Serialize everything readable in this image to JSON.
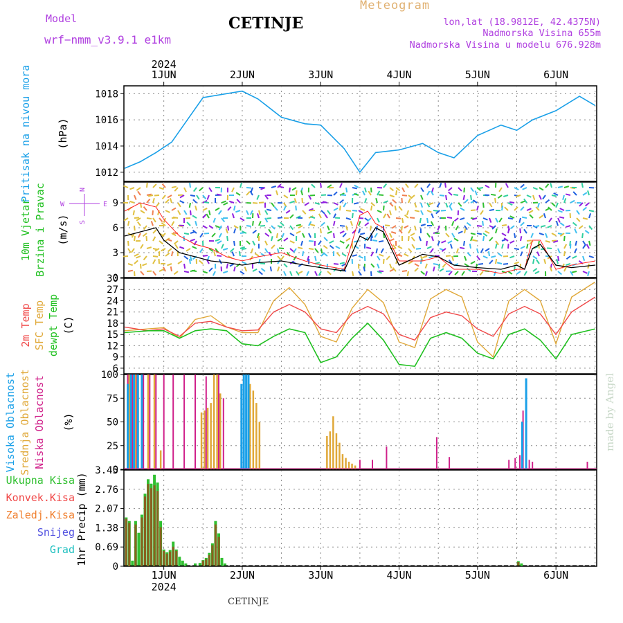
{
  "header": {
    "model_label": "Model",
    "model_name": "wrf−nmm_v3.9.1 e1km",
    "station": "CETINJE",
    "meteogram": "Meteogram",
    "lonlat": "lon,lat (18.9812E, 42.4375N)",
    "elevation": "Nadmorska Visina 655m",
    "model_elevation": "Nadmorska Visina u modelu 676.928m"
  },
  "time_axis": {
    "year": "2024",
    "days": [
      "1JUN",
      "2JUN",
      "3JUN",
      "4JUN",
      "5JUN",
      "6JUN"
    ]
  },
  "footer": {
    "station": "CETINJE",
    "made_by": "made by Angel"
  },
  "colors": {
    "pressure": "#1aa0e8",
    "wind_speed": "#000000",
    "gust": "#ff2020",
    "t2m": "#f04848",
    "sfc": "#e0a838",
    "dewpt": "#20c020",
    "high_cloud": "#1aa0e8",
    "mid_cloud": "#e0a838",
    "low_cloud": "#d0208a",
    "total_precip": "#30c030",
    "conv_precip": "#f04848"
  },
  "chart_data": [
    {
      "type": "line",
      "panel": "pressure",
      "ylabel": [
        "Pritisak na nivou mora",
        "(hPa)"
      ],
      "yticks": [
        "1012",
        "1014",
        "1016",
        "1018"
      ],
      "ylim": [
        1011.3,
        1018.6
      ],
      "x": [
        0.5,
        0.7,
        0.9,
        1.1,
        1.3,
        1.5,
        1.8,
        2.0,
        2.2,
        2.5,
        2.8,
        3.0,
        3.3,
        3.5,
        3.7,
        4.0,
        4.3,
        4.5,
        4.7,
        5.0,
        5.3,
        5.5,
        5.7,
        6.0,
        6.3,
        6.5
      ],
      "series": [
        {
          "values": [
            1012.3,
            1012.8,
            1013.5,
            1014.3,
            1016.0,
            1017.7,
            1018.0,
            1018.2,
            1017.6,
            1016.2,
            1015.7,
            1015.6,
            1013.8,
            1012.0,
            1013.5,
            1013.7,
            1014.2,
            1013.5,
            1013.1,
            1014.8,
            1015.6,
            1015.2,
            1016.0,
            1016.7,
            1017.8,
            1017.1
          ]
        }
      ],
      "grid": true
    },
    {
      "type": "line",
      "panel": "wind",
      "ylabel": [
        "10m Vjetar",
        "Brzina i Pravac",
        "(m/s)"
      ],
      "compass": {
        "n": "N",
        "s": "S",
        "e": "E",
        "w": "W"
      },
      "yticks": [
        "0",
        "3",
        "6",
        "9"
      ],
      "ylim": [
        0,
        11.5
      ],
      "x": [
        0.5,
        0.7,
        0.9,
        1.0,
        1.2,
        1.4,
        1.6,
        1.8,
        2.0,
        2.2,
        2.5,
        2.8,
        3.0,
        3.3,
        3.5,
        3.6,
        3.7,
        3.8,
        4.0,
        4.3,
        4.5,
        4.7,
        5.0,
        5.3,
        5.5,
        5.6,
        5.7,
        5.8,
        6.0,
        6.2,
        6.5
      ],
      "series": [
        {
          "values": [
            5.0,
            5.5,
            6.0,
            4.5,
            3.0,
            2.5,
            2.0,
            1.8,
            1.5,
            1.8,
            2.0,
            1.5,
            1.2,
            0.8,
            5.0,
            4.5,
            6.0,
            5.5,
            1.5,
            2.8,
            2.5,
            1.5,
            1.2,
            1.0,
            1.5,
            1.0,
            3.5,
            4.0,
            1.5,
            1.2,
            1.5
          ]
        },
        {
          "values": [
            8.0,
            9.0,
            8.5,
            7.0,
            5.0,
            4.0,
            3.5,
            2.5,
            2.0,
            2.5,
            3.0,
            2.0,
            1.5,
            1.0,
            7.5,
            8.0,
            6.5,
            6.0,
            2.0,
            2.0,
            2.5,
            1.0,
            1.0,
            0.5,
            1.0,
            1.0,
            4.5,
            4.5,
            1.0,
            1.5,
            2.0
          ]
        }
      ],
      "grid": true
    },
    {
      "type": "line",
      "panel": "temperature",
      "ylabel": [
        "2m Temp",
        "SFC Temp",
        "dewpt Temp",
        "(C)"
      ],
      "yticks": [
        "6",
        "9",
        "12",
        "15",
        "18",
        "21",
        "24",
        "27",
        "30"
      ],
      "ylim": [
        4.5,
        30
      ],
      "x": [
        0.5,
        0.8,
        1.0,
        1.2,
        1.4,
        1.6,
        1.8,
        2.0,
        2.2,
        2.4,
        2.6,
        2.8,
        3.0,
        3.2,
        3.4,
        3.6,
        3.8,
        4.0,
        4.2,
        4.4,
        4.6,
        4.8,
        5.0,
        5.2,
        5.4,
        5.6,
        5.8,
        6.0,
        6.2,
        6.5
      ],
      "series": [
        {
          "name": "2m Temp",
          "values": [
            17.0,
            16.0,
            16.5,
            14.5,
            18.0,
            18.5,
            17.0,
            16.0,
            16.2,
            21.0,
            23.0,
            21.0,
            16.5,
            15.5,
            20.5,
            22.5,
            20.5,
            15.0,
            13.5,
            19.5,
            21.0,
            20.0,
            16.5,
            14.5,
            20.5,
            22.5,
            20.5,
            15.0,
            21.0,
            25.0
          ]
        },
        {
          "name": "SFC Temp",
          "values": [
            16.0,
            16.5,
            16.8,
            14.0,
            19.0,
            20.0,
            17.0,
            15.5,
            15.5,
            24.0,
            27.5,
            23.0,
            14.5,
            13.0,
            22.0,
            27.0,
            23.5,
            13.0,
            11.5,
            24.5,
            27.0,
            25.0,
            13.0,
            9.0,
            24.0,
            27.0,
            24.0,
            12.5,
            25.0,
            29.0
          ]
        },
        {
          "name": "dewpt Temp",
          "values": [
            15.5,
            16.0,
            16.0,
            14.0,
            16.0,
            16.5,
            16.0,
            12.5,
            12.0,
            14.5,
            16.5,
            15.5,
            7.5,
            9.0,
            14.0,
            18.0,
            13.5,
            7.0,
            6.5,
            14.0,
            15.5,
            14.0,
            10.0,
            8.5,
            15.0,
            16.5,
            13.5,
            8.5,
            15.0,
            16.5
          ]
        }
      ],
      "grid": true
    },
    {
      "type": "bar",
      "panel": "clouds",
      "ylabel": [
        "Visoka Oblacnost",
        "Srednja Oblacnost",
        "Niska Oblacnost",
        "(%)"
      ],
      "yticks": [
        "0",
        "25",
        "50",
        "75",
        "100"
      ],
      "ylim": [
        0,
        100
      ],
      "series": [
        {
          "name": "Visoka Oblacnost",
          "x": [
            0.54,
            0.58,
            0.62,
            0.67,
            0.72,
            1.99,
            2.02,
            2.05,
            2.08,
            5.57,
            5.62
          ],
          "values": [
            90,
            100,
            100,
            100,
            100,
            90,
            100,
            100,
            100,
            50,
            96
          ]
        },
        {
          "name": "Srednja Oblacnost",
          "x": [
            0.56,
            0.64,
            0.72,
            0.8,
            0.88,
            0.96,
            1.48,
            1.52,
            1.56,
            1.6,
            1.64,
            1.68,
            1.72,
            2.1,
            2.14,
            2.18,
            2.22,
            3.08,
            3.12,
            3.16,
            3.2,
            3.24,
            3.28,
            3.32,
            3.36,
            3.4,
            3.44
          ],
          "values": [
            100,
            100,
            100,
            100,
            100,
            20,
            60,
            62,
            65,
            70,
            100,
            100,
            80,
            90,
            83,
            70,
            50,
            35,
            40,
            56,
            38,
            28,
            16,
            12,
            8,
            6,
            4
          ]
        },
        {
          "name": "Niska Oblacnost",
          "x": [
            0.54,
            0.6,
            0.66,
            0.74,
            0.82,
            0.9,
            1.0,
            1.12,
            1.26,
            1.4,
            1.54,
            1.7,
            1.76,
            3.5,
            3.66,
            3.84,
            4.48,
            4.64,
            5.4,
            5.48,
            5.54,
            5.58,
            5.62,
            5.66,
            5.7,
            6.4
          ],
          "values": [
            100,
            100,
            100,
            100,
            100,
            100,
            100,
            100,
            100,
            100,
            98,
            100,
            75,
            10,
            10,
            24,
            34,
            13,
            10,
            12,
            15,
            62,
            14,
            10,
            8,
            8
          ]
        }
      ],
      "grid": true
    },
    {
      "type": "bar",
      "panel": "precipitation",
      "ylabel": [
        "1hr Precip (mm)"
      ],
      "legend": [
        "Ukupna Kisa",
        "Konvek.Kisa",
        "Zaledj.Kisa",
        "Snijeg",
        "Grad"
      ],
      "yticks": [
        "0",
        "0.69",
        "1.38",
        "2.07",
        "2.76",
        "3.45"
      ],
      "ylim": [
        0,
        3.45
      ],
      "series": [
        {
          "name": "Ukupna Kisa",
          "x": [
            0.52,
            0.56,
            0.6,
            0.64,
            0.68,
            0.72,
            0.76,
            0.8,
            0.84,
            0.88,
            0.92,
            0.96,
            1.0,
            1.04,
            1.08,
            1.12,
            1.16,
            1.2,
            1.24,
            1.28,
            1.4,
            1.46,
            1.5,
            1.54,
            1.58,
            1.62,
            1.66,
            1.7,
            1.74,
            1.78,
            5.52,
            5.56
          ],
          "values": [
            1.75,
            1.62,
            0.2,
            1.62,
            1.2,
            1.85,
            2.6,
            3.12,
            2.96,
            3.28,
            3.0,
            1.62,
            0.6,
            0.5,
            0.58,
            0.88,
            0.6,
            0.34,
            0.2,
            0.1,
            0.1,
            0.12,
            0.22,
            0.3,
            0.48,
            0.82,
            1.62,
            1.18,
            0.3,
            0.1,
            0.18,
            0.1
          ]
        },
        {
          "name": "Konvek.Kisa",
          "x": [
            0.52,
            0.56,
            0.64,
            0.72,
            0.76,
            0.8,
            0.84,
            0.88,
            0.92,
            0.96,
            1.0,
            1.04,
            1.08,
            1.12,
            1.16,
            1.5,
            1.54,
            1.58,
            1.62,
            1.66,
            1.7,
            5.52
          ],
          "values": [
            1.7,
            1.55,
            1.5,
            1.75,
            2.5,
            2.95,
            2.8,
            2.9,
            2.7,
            1.4,
            0.55,
            0.45,
            0.52,
            0.7,
            0.55,
            0.2,
            0.25,
            0.4,
            0.75,
            1.5,
            1.05,
            0.15
          ]
        }
      ],
      "grid": true
    }
  ]
}
